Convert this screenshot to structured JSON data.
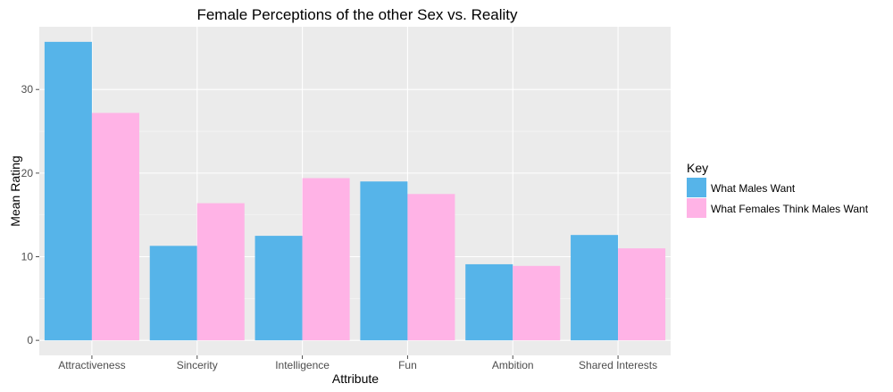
{
  "chart_data": {
    "type": "bar",
    "title": "Female Perceptions of the other Sex vs. Reality",
    "xlabel": "Attribute",
    "ylabel": "Mean Rating",
    "categories": [
      "Attractiveness",
      "Sincerity",
      "Intelligence",
      "Fun",
      "Ambition",
      "Shared Interests"
    ],
    "series": [
      {
        "name": "What Males Want",
        "values": [
          35.7,
          11.3,
          12.5,
          19.0,
          9.1,
          12.6
        ],
        "color": "#56b4e9"
      },
      {
        "name": "What Females Think Males Want",
        "values": [
          27.2,
          16.4,
          19.4,
          17.5,
          8.9,
          11.0
        ],
        "color": "#ffb3e6"
      }
    ],
    "ylim": [
      -1.8,
      37.5
    ],
    "yticks": [
      0,
      10,
      20,
      30
    ],
    "grid": true,
    "legend": {
      "title": "Key",
      "position": "right"
    }
  }
}
